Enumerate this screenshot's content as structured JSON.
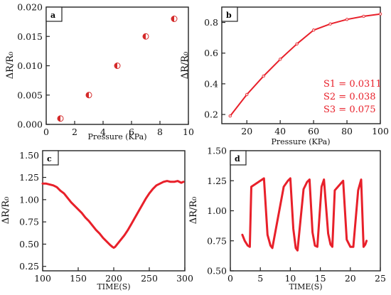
{
  "chart_data": [
    {
      "panel": "a",
      "type": "scatter",
      "title": "",
      "xlabel": "Pressure (KPa)",
      "ylabel": "ΔR/R₀",
      "xlim": [
        0,
        10
      ],
      "ylim": [
        0,
        0.02
      ],
      "x_ticks": [
        "0",
        "2",
        "4",
        "6",
        "8",
        "10"
      ],
      "y_ticks": [
        "0.000",
        "0.005",
        "0.010",
        "0.015",
        "0.020"
      ],
      "series": [
        {
          "x": [
            1,
            3,
            5,
            7,
            9
          ],
          "y": [
            0.001,
            0.005,
            0.01,
            0.015,
            0.018
          ]
        }
      ],
      "grid": false,
      "marker": "half-filled circle",
      "color": "#d42a2a"
    },
    {
      "panel": "b",
      "type": "line",
      "title": "",
      "xlabel": "Pressure (KPa)",
      "ylabel": "ΔR/R₀",
      "xlim": [
        5,
        100
      ],
      "ylim": [
        0.14,
        0.9
      ],
      "x_ticks": [
        "20",
        "40",
        "60",
        "80",
        "100"
      ],
      "y_ticks": [
        "0.2",
        "0.4",
        "0.6",
        "0.8"
      ],
      "series": [
        {
          "x": [
            10,
            20,
            30,
            40,
            50,
            60,
            70,
            80,
            90,
            100
          ],
          "y": [
            0.19,
            0.33,
            0.45,
            0.56,
            0.66,
            0.75,
            0.79,
            0.82,
            0.84,
            0.855
          ]
        }
      ],
      "annotations": [
        "S1 = 0.0311",
        "S2 = 0.038",
        "S3 = 0.075"
      ],
      "grid": false,
      "color": "#e8202a"
    },
    {
      "panel": "c",
      "type": "line",
      "title": "",
      "xlabel": "TIME(S)",
      "ylabel": "ΔR/R₀",
      "xlim": [
        100,
        300
      ],
      "ylim": [
        0.2,
        1.55
      ],
      "x_ticks": [
        "100",
        "150",
        "200",
        "250",
        "300"
      ],
      "y_ticks": [
        "0.25",
        "0.50",
        "0.75",
        "1.00",
        "1.25",
        "1.50"
      ],
      "series": [
        {
          "x": [
            100,
            105,
            110,
            115,
            120,
            125,
            130,
            135,
            140,
            145,
            150,
            155,
            160,
            165,
            170,
            175,
            180,
            185,
            190,
            195,
            198,
            200,
            202,
            205,
            210,
            215,
            220,
            225,
            230,
            235,
            240,
            245,
            250,
            255,
            260,
            265,
            270,
            275,
            280,
            285,
            290,
            295,
            298
          ],
          "y": [
            1.18,
            1.18,
            1.17,
            1.16,
            1.14,
            1.1,
            1.07,
            1.02,
            0.97,
            0.93,
            0.89,
            0.85,
            0.8,
            0.76,
            0.71,
            0.66,
            0.62,
            0.57,
            0.53,
            0.49,
            0.47,
            0.46,
            0.47,
            0.5,
            0.55,
            0.6,
            0.66,
            0.73,
            0.8,
            0.87,
            0.94,
            1.01,
            1.07,
            1.12,
            1.16,
            1.18,
            1.2,
            1.21,
            1.2,
            1.2,
            1.21,
            1.19,
            1.2
          ]
        }
      ],
      "grid": false,
      "color": "#e8202a"
    },
    {
      "panel": "d",
      "type": "line",
      "title": "",
      "xlabel": "TIME(S)",
      "ylabel": "ΔR/R₀",
      "xlim": [
        0,
        25
      ],
      "ylim": [
        0.5,
        1.5
      ],
      "x_ticks": [
        "0",
        "5",
        "10",
        "15",
        "20",
        "25"
      ],
      "y_ticks": [
        "0.50",
        "0.75",
        "1.00",
        "1.25",
        "1.50"
      ],
      "series": [
        {
          "x": [
            2.0,
            2.4,
            2.9,
            3.25,
            3.5,
            5.0,
            5.6,
            6.2,
            6.7,
            7.0,
            8.9,
            9.6,
            10.0,
            10.5,
            10.9,
            11.2,
            12.2,
            12.8,
            13.2,
            13.7,
            14.1,
            14.5,
            15.2,
            15.6,
            16.3,
            16.7,
            17.0,
            17.4,
            18.8,
            19.4,
            20.0,
            20.5,
            21.3,
            21.8,
            22.2,
            22.5,
            22.7
          ],
          "y": [
            0.8,
            0.75,
            0.71,
            0.7,
            1.2,
            1.25,
            1.27,
            0.8,
            0.71,
            0.69,
            1.2,
            1.25,
            1.27,
            0.85,
            0.69,
            0.67,
            1.18,
            1.24,
            1.26,
            0.82,
            0.71,
            0.7,
            1.2,
            1.26,
            0.81,
            0.72,
            0.7,
            1.17,
            1.25,
            0.76,
            0.7,
            0.7,
            1.17,
            1.26,
            0.7,
            0.72,
            0.75
          ]
        }
      ],
      "grid": false,
      "color": "#e8202a"
    }
  ]
}
